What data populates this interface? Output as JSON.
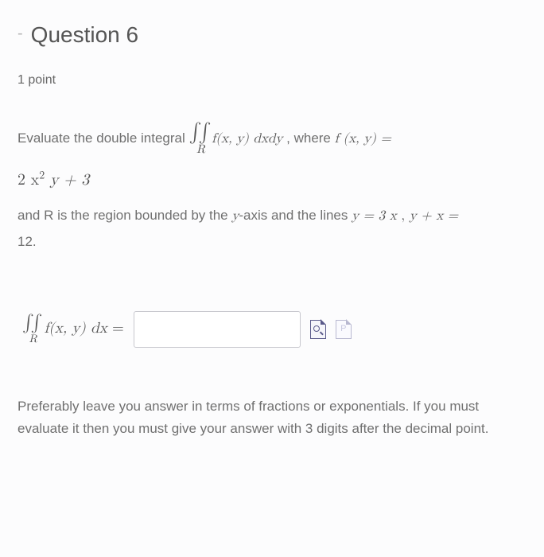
{
  "header": {
    "collapse_glyph": "-",
    "title": "Question 6"
  },
  "points_label": "1 point",
  "prompt": {
    "lead": "Evaluate the double integral ",
    "integral_sym": "∫∫",
    "integral_region": "R",
    "integrand": "f(x, y) dxdy",
    "where": " ,  where ",
    "func_def_lhs": "f (x, y) =",
    "func_def_rhs_prefix": "2 x",
    "func_def_rhs_exp": "2",
    "func_def_rhs_suffix": " y + 3",
    "region_1": "and R is the region bounded by the ",
    "y_axis": "y",
    "region_2": "-axis and the lines ",
    "line_a": "y = 3 x",
    "comma": " , ",
    "line_b": "y + x =",
    "rhs_12": " 12."
  },
  "answer": {
    "lhs_integrand": "f(x, y) dx",
    "equals": " = ",
    "input_value": "",
    "input_placeholder": ""
  },
  "note": "Preferably leave you answer in terms of fractions or exponentials. If you must evaluate it then you must give your answer with 3 digits after the decimal point.",
  "colors": {
    "text_body": "#707070",
    "text_heading": "#555555",
    "input_border": "#c8c8ce",
    "icon_border": "#5a5a8a",
    "background": "#fcfcfd"
  }
}
